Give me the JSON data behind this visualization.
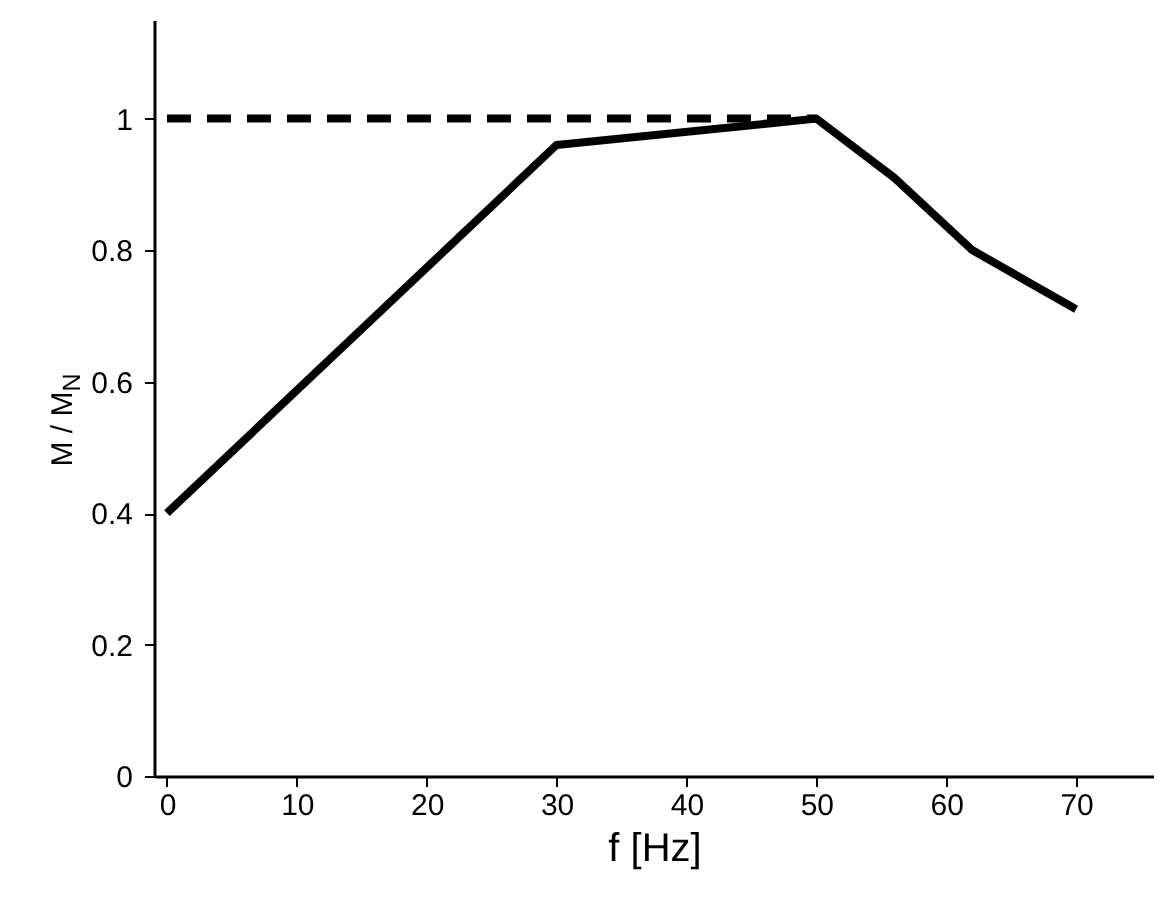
{
  "chart_data": {
    "type": "line",
    "xlabel": "f [Hz]",
    "ylabel": "M / M$_{N}$",
    "xlim": [
      -1,
      76
    ],
    "ylim": [
      0,
      1.15
    ],
    "xticks": [
      0,
      10,
      20,
      30,
      40,
      50,
      60,
      70
    ],
    "yticks": [
      0,
      0.2,
      0.4,
      0.6,
      0.8,
      1
    ],
    "marker": "none",
    "series": [
      {
        "color": "#000000",
        "x": [
          0,
          30,
          50,
          56,
          62,
          70
        ],
        "values": [
          0.4,
          0.96,
          1.0,
          0.91,
          0.8,
          0.71
        ],
        "line_style": "solid"
      },
      {
        "color": "#000000",
        "x": [
          0,
          50
        ],
        "values": [
          1,
          1
        ],
        "line_style": "dashed"
      }
    ]
  }
}
